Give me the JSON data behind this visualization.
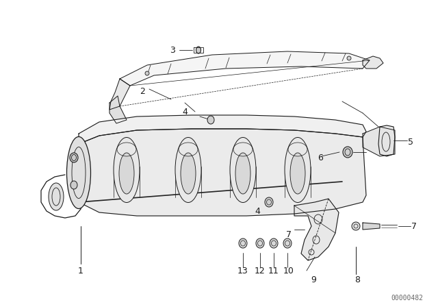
{
  "bg_color": "#ffffff",
  "line_color": "#1a1a1a",
  "figure_width": 6.4,
  "figure_height": 4.48,
  "dpi": 100,
  "watermark": "00000482",
  "watermark_color": "#666666",
  "watermark_fontsize": 7
}
